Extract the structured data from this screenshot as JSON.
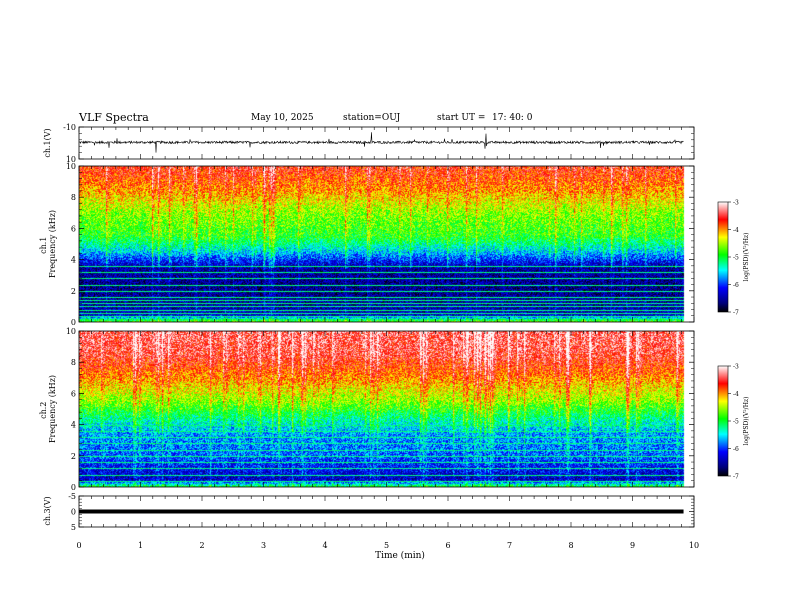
{
  "header": {
    "title": "VLF Spectra",
    "date": "May 10, 2025",
    "station": "station=OUJ",
    "start_label": "start  UT  =",
    "start_time": "17: 40: 0"
  },
  "chart_data": [
    {
      "type": "line",
      "name": "waveform-ch1",
      "ylabel": "ch.1(V)",
      "ylim": [
        -10,
        10
      ],
      "yticks": [
        "10",
        "-10"
      ],
      "x_range_min": [
        0,
        9.83
      ],
      "baseline_v": 0.4,
      "noise_amplitude_v": 1.5,
      "spike_max_v": 6.5
    },
    {
      "type": "heatmap",
      "name": "spectrogram-ch1",
      "ylabel": "ch.1\nFrequency (kHz)",
      "ylim_khz": [
        0,
        10
      ],
      "yticks": [
        "0",
        "2",
        "4",
        "6",
        "8",
        "10"
      ],
      "colorbar": {
        "label": "log(PSD)(V²/Hz)",
        "range": [
          -7,
          -3
        ],
        "ticks": [
          "-3",
          "-4",
          "-5",
          "-6",
          "-7"
        ]
      },
      "band_profile": [
        {
          "freq_khz": 0.0,
          "log_psd": -4.5
        },
        {
          "freq_khz": 0.5,
          "log_psd": -6.4
        },
        {
          "freq_khz": 2.0,
          "log_psd": -6.6
        },
        {
          "freq_khz": 3.5,
          "log_psd": -6.5
        },
        {
          "freq_khz": 4.5,
          "log_psd": -5.6
        },
        {
          "freq_khz": 5.5,
          "log_psd": -4.9
        },
        {
          "freq_khz": 7.0,
          "log_psd": -4.6
        },
        {
          "freq_khz": 8.5,
          "log_psd": -4.0
        },
        {
          "freq_khz": 10.0,
          "log_psd": -3.6
        }
      ],
      "lines_khz": [
        0.2,
        0.4,
        0.6,
        0.8,
        1.0,
        1.2,
        1.4,
        1.6,
        2.0,
        2.4,
        2.8,
        3.2,
        3.6
      ]
    },
    {
      "type": "heatmap",
      "name": "spectrogram-ch2",
      "ylabel": "ch.2\nFrequency (kHz)",
      "ylim_khz": [
        0,
        10
      ],
      "yticks": [
        "0",
        "2",
        "4",
        "6",
        "8",
        "10"
      ],
      "colorbar": {
        "label": "log(PSD)(V²/Hz)",
        "range": [
          -7,
          -3
        ],
        "ticks": [
          "-3",
          "-4",
          "-5",
          "-6",
          "-7"
        ]
      },
      "band_profile": [
        {
          "freq_khz": 0.0,
          "log_psd": -4.8
        },
        {
          "freq_khz": 0.5,
          "log_psd": -6.4
        },
        {
          "freq_khz": 2.0,
          "log_psd": -5.9
        },
        {
          "freq_khz": 3.5,
          "log_psd": -5.7
        },
        {
          "freq_khz": 4.5,
          "log_psd": -5.2
        },
        {
          "freq_khz": 5.5,
          "log_psd": -4.6
        },
        {
          "freq_khz": 7.0,
          "log_psd": -4.0
        },
        {
          "freq_khz": 8.5,
          "log_psd": -3.5
        },
        {
          "freq_khz": 10.0,
          "log_psd": -3.4
        }
      ],
      "lines_khz": [
        0.4,
        0.8,
        1.2,
        1.6,
        2.0,
        2.4,
        2.8,
        3.2,
        3.6,
        4.0
      ]
    },
    {
      "type": "line",
      "name": "waveform-ch3",
      "ylabel": "ch.3(V)",
      "ylim": [
        -5,
        5
      ],
      "yticks": [
        "5",
        "0",
        "-5"
      ],
      "x_range_min": [
        0,
        9.83
      ],
      "value_v": 0.0
    }
  ],
  "x_axis": {
    "label": "Time (min)",
    "range": [
      0,
      10
    ],
    "ticks": [
      "0",
      "1",
      "2",
      "3",
      "4",
      "5",
      "6",
      "7",
      "8",
      "9",
      "10"
    ]
  }
}
